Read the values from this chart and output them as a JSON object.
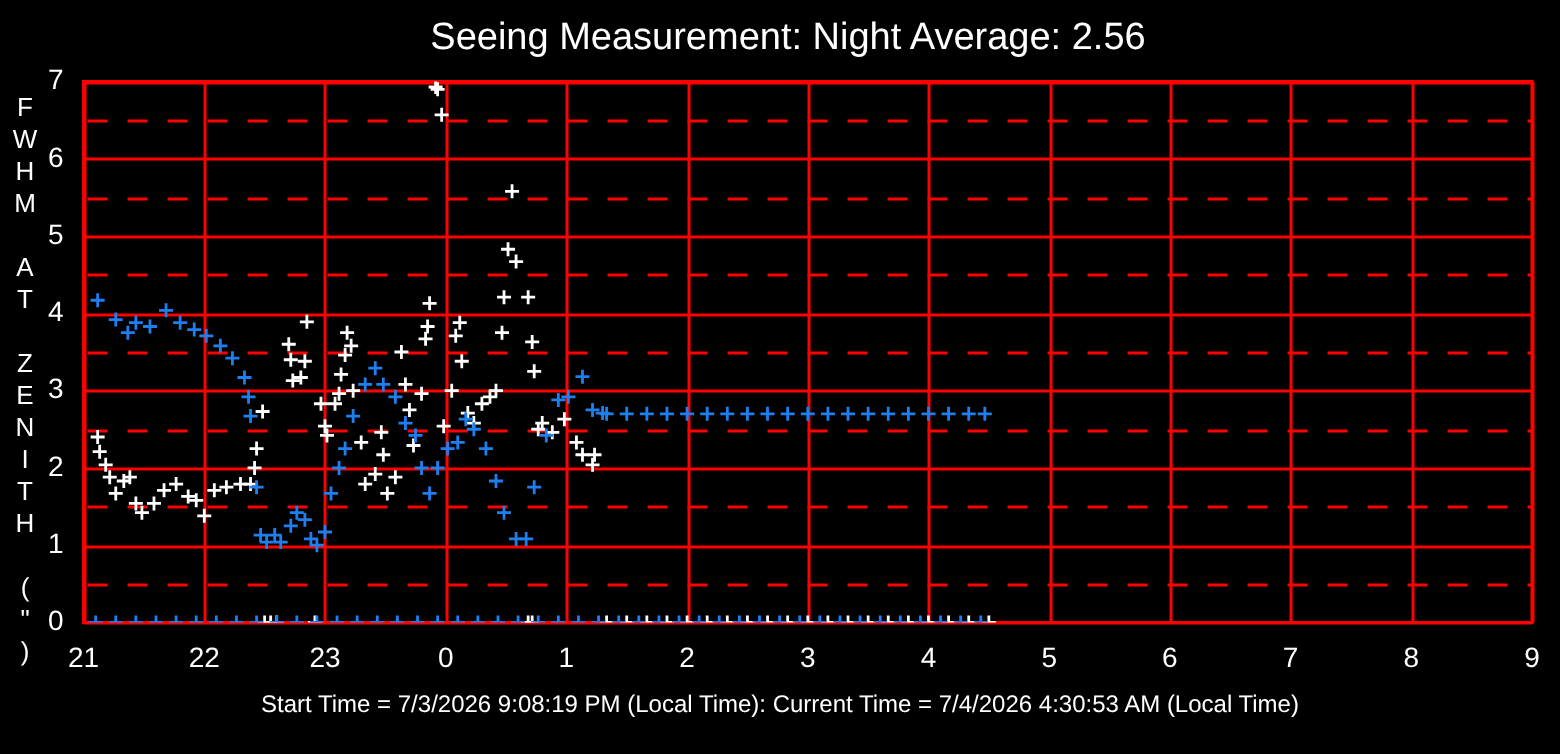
{
  "chart_data": {
    "type": "scatter",
    "title": "Seeing Measurement: Night Average: 2.56",
    "ylabel": "FWHM AT ZENITH (\")",
    "annotations": [
      "Start Time = 7/3/2026 9:08:19 PM (Local Time): Current Time = 7/4/2026 4:30:53 AM (Local Time)"
    ],
    "xlim": [
      "2026-07-03T21:00",
      "2026-07-04T09:00"
    ],
    "xticks": [
      {
        "value": "2026-07-03T21:00",
        "label": "21"
      },
      {
        "value": "2026-07-03T22:00",
        "label": "22"
      },
      {
        "value": "2026-07-03T23:00",
        "label": "23"
      },
      {
        "value": "2026-07-04T00:00",
        "label": "0"
      },
      {
        "value": "2026-07-04T01:00",
        "label": "1"
      },
      {
        "value": "2026-07-04T02:00",
        "label": "2"
      },
      {
        "value": "2026-07-04T03:00",
        "label": "3"
      },
      {
        "value": "2026-07-04T04:00",
        "label": "4"
      },
      {
        "value": "2026-07-04T05:00",
        "label": "5"
      },
      {
        "value": "2026-07-04T06:00",
        "label": "6"
      },
      {
        "value": "2026-07-04T07:00",
        "label": "7"
      },
      {
        "value": "2026-07-04T08:00",
        "label": "8"
      },
      {
        "value": "2026-07-04T09:00",
        "label": "9"
      }
    ],
    "ylim": [
      0,
      7
    ],
    "yticks": [
      0,
      {
        "value": 0.5,
        "label": null
      },
      1,
      {
        "value": 1.5,
        "label": null
      },
      2,
      {
        "value": 2.5,
        "label": null
      },
      3,
      {
        "value": 3.5,
        "label": null
      },
      4,
      {
        "value": 4.5,
        "label": null
      },
      5,
      {
        "value": 5.5,
        "label": null
      },
      6,
      {
        "value": 6.5,
        "label": null
      },
      7
    ],
    "grid": true,
    "marker": "cross",
    "series": [
      {
        "color": "#1e80f0",
        "x": [
          "2026-07-03T21:07",
          "2026-07-03T21:16",
          "2026-07-03T21:22",
          "2026-07-03T21:26",
          "2026-07-03T21:33",
          "2026-07-03T21:41",
          "2026-07-03T21:48",
          "2026-07-03T21:55",
          "2026-07-03T22:01",
          "2026-07-03T22:08",
          "2026-07-03T22:14",
          "2026-07-03T22:20",
          "2026-07-03T22:22",
          "2026-07-03T22:23",
          "2026-07-03T22:26",
          "2026-07-03T22:28",
          "2026-07-03T22:31",
          "2026-07-03T22:35",
          "2026-07-03T22:38",
          "2026-07-03T22:43",
          "2026-07-03T22:46",
          "2026-07-03T22:50",
          "2026-07-03T22:53",
          "2026-07-03T22:56",
          "2026-07-03T23:00",
          "2026-07-03T23:03",
          "2026-07-03T23:07",
          "2026-07-03T23:10",
          "2026-07-03T23:14",
          "2026-07-03T23:20",
          "2026-07-03T23:25",
          "2026-07-03T23:29",
          "2026-07-03T23:35",
          "2026-07-03T23:40",
          "2026-07-03T23:45",
          "2026-07-03T23:48",
          "2026-07-03T23:52",
          "2026-07-03T23:56",
          "2026-07-04T00:01",
          "2026-07-04T00:06",
          "2026-07-04T00:10",
          "2026-07-04T00:14",
          "2026-07-04T00:20",
          "2026-07-04T00:25",
          "2026-07-04T00:29",
          "2026-07-04T00:35",
          "2026-07-04T00:40",
          "2026-07-04T00:44",
          "2026-07-04T00:50",
          "2026-07-04T00:56",
          "2026-07-04T01:01",
          "2026-07-04T01:08",
          "2026-07-04T01:13",
          "2026-07-04T01:18",
          "2026-07-04T01:20",
          "2026-07-04T01:30",
          "2026-07-04T01:40",
          "2026-07-04T01:50",
          "2026-07-04T02:00",
          "2026-07-04T02:10",
          "2026-07-04T02:20",
          "2026-07-04T02:30",
          "2026-07-04T02:40",
          "2026-07-04T02:50",
          "2026-07-04T03:00",
          "2026-07-04T03:10",
          "2026-07-04T03:20",
          "2026-07-04T03:30",
          "2026-07-04T03:40",
          "2026-07-04T03:50",
          "2026-07-04T04:00",
          "2026-07-04T04:10",
          "2026-07-04T04:20",
          "2026-07-04T04:28",
          "2026-07-03T21:06",
          "2026-07-03T21:16",
          "2026-07-03T21:26",
          "2026-07-03T21:36",
          "2026-07-03T21:46",
          "2026-07-03T21:56",
          "2026-07-03T22:06",
          "2026-07-03T22:16",
          "2026-07-03T22:26",
          "2026-07-03T22:36",
          "2026-07-03T22:46",
          "2026-07-03T22:56",
          "2026-07-03T23:06",
          "2026-07-03T23:16",
          "2026-07-03T23:26",
          "2026-07-03T23:36",
          "2026-07-03T23:46",
          "2026-07-03T23:56",
          "2026-07-04T00:06",
          "2026-07-04T00:16",
          "2026-07-04T00:26",
          "2026-07-04T00:36",
          "2026-07-04T00:46",
          "2026-07-04T00:56",
          "2026-07-04T01:06",
          "2026-07-04T01:16",
          "2026-07-04T01:26",
          "2026-07-04T01:36",
          "2026-07-04T01:46",
          "2026-07-04T01:56",
          "2026-07-04T02:06",
          "2026-07-04T02:16",
          "2026-07-04T02:26",
          "2026-07-04T02:36",
          "2026-07-04T02:46",
          "2026-07-04T02:56",
          "2026-07-04T03:06",
          "2026-07-04T03:16",
          "2026-07-04T03:26",
          "2026-07-04T03:36",
          "2026-07-04T03:46",
          "2026-07-04T03:56",
          "2026-07-04T04:06",
          "2026-07-04T04:16",
          "2026-07-04T04:26"
        ],
        "values": [
          4.17,
          3.92,
          3.75,
          3.88,
          3.83,
          4.04,
          3.88,
          3.79,
          3.71,
          3.58,
          3.42,
          3.17,
          2.92,
          2.67,
          1.75,
          1.13,
          1.04,
          1.13,
          1.04,
          1.25,
          1.42,
          1.33,
          1.08,
          1.0,
          1.17,
          1.67,
          2.0,
          2.25,
          2.67,
          3.08,
          3.29,
          3.08,
          2.92,
          2.58,
          2.42,
          2.0,
          1.67,
          2.0,
          2.25,
          2.33,
          2.63,
          2.5,
          2.25,
          1.83,
          1.42,
          1.08,
          1.08,
          1.75,
          2.42,
          2.88,
          2.92,
          3.18,
          2.75,
          2.71,
          2.7,
          2.7,
          2.7,
          2.7,
          2.7,
          2.7,
          2.7,
          2.7,
          2.7,
          2.7,
          2.7,
          2.7,
          2.7,
          2.7,
          2.7,
          2.7,
          2.7,
          2.7,
          2.7,
          2.7,
          0,
          0,
          0,
          0,
          0,
          0,
          0,
          0,
          0,
          0,
          0,
          0,
          0,
          0,
          0,
          0,
          0,
          0,
          0,
          0,
          0,
          0,
          0,
          0,
          0,
          0,
          0,
          0,
          0,
          0,
          0,
          0,
          0,
          0,
          0,
          0,
          0,
          0,
          0,
          0,
          0,
          0,
          0,
          0,
          0
        ]
      },
      {
        "color": "#ffffff",
        "x": [
          "2026-07-03T21:07",
          "2026-07-03T21:08",
          "2026-07-03T21:11",
          "2026-07-03T21:13",
          "2026-07-03T21:16",
          "2026-07-03T21:20",
          "2026-07-03T21:23",
          "2026-07-03T21:26",
          "2026-07-03T21:29",
          "2026-07-03T21:35",
          "2026-07-03T21:40",
          "2026-07-03T21:46",
          "2026-07-03T21:52",
          "2026-07-03T21:56",
          "2026-07-03T22:00",
          "2026-07-03T22:05",
          "2026-07-03T22:11",
          "2026-07-03T22:18",
          "2026-07-03T22:23",
          "2026-07-03T22:25",
          "2026-07-03T22:26",
          "2026-07-03T22:29",
          "2026-07-03T22:42",
          "2026-07-03T22:43",
          "2026-07-03T22:44",
          "2026-07-03T22:48",
          "2026-07-03T22:50",
          "2026-07-03T22:51",
          "2026-07-03T22:58",
          "2026-07-03T23:00",
          "2026-07-03T23:01",
          "2026-07-03T23:05",
          "2026-07-03T23:07",
          "2026-07-03T23:08",
          "2026-07-03T23:10",
          "2026-07-03T23:11",
          "2026-07-03T23:13",
          "2026-07-03T23:14",
          "2026-07-03T23:18",
          "2026-07-03T23:20",
          "2026-07-03T23:25",
          "2026-07-03T23:28",
          "2026-07-03T23:29",
          "2026-07-03T23:31",
          "2026-07-03T23:35",
          "2026-07-03T23:38",
          "2026-07-03T23:40",
          "2026-07-03T23:42",
          "2026-07-03T23:44",
          "2026-07-03T23:48",
          "2026-07-03T23:50",
          "2026-07-03T23:51",
          "2026-07-03T23:52",
          "2026-07-03T23:55",
          "2026-07-03T23:56",
          "2026-07-03T23:58",
          "2026-07-03T23:59",
          "2026-07-04T00:03",
          "2026-07-04T00:05",
          "2026-07-04T00:07",
          "2026-07-04T00:08",
          "2026-07-04T00:11",
          "2026-07-04T00:14",
          "2026-07-04T00:18",
          "2026-07-04T00:22",
          "2026-07-04T00:25",
          "2026-07-04T00:28",
          "2026-07-04T00:29",
          "2026-07-04T00:31",
          "2026-07-04T00:33",
          "2026-07-04T00:35",
          "2026-07-04T00:41",
          "2026-07-04T00:43",
          "2026-07-04T00:44",
          "2026-07-04T00:46",
          "2026-07-04T00:48",
          "2026-07-04T00:53",
          "2026-07-04T00:59",
          "2026-07-04T01:05",
          "2026-07-04T01:08",
          "2026-07-04T01:13",
          "2026-07-04T01:14",
          "2026-07-03T22:30",
          "2026-07-03T22:33",
          "2026-07-03T22:36",
          "2026-07-03T22:55",
          "2026-07-04T00:41",
          "2026-07-04T00:43",
          "2026-07-04T01:20",
          "2026-07-04T01:30",
          "2026-07-04T01:40",
          "2026-07-04T01:50",
          "2026-07-04T02:00",
          "2026-07-04T02:10",
          "2026-07-04T02:20",
          "2026-07-04T02:30",
          "2026-07-04T02:40",
          "2026-07-04T02:50",
          "2026-07-04T03:00",
          "2026-07-04T03:10",
          "2026-07-04T03:20",
          "2026-07-04T03:30",
          "2026-07-04T03:40",
          "2026-07-04T03:50",
          "2026-07-04T04:00",
          "2026-07-04T04:10",
          "2026-07-04T04:20",
          "2026-07-04T04:30"
        ],
        "values": [
          2.4,
          2.21,
          2.04,
          1.88,
          1.67,
          1.83,
          1.88,
          1.54,
          1.42,
          1.54,
          1.71,
          1.79,
          1.63,
          1.58,
          1.38,
          1.71,
          1.75,
          1.79,
          1.79,
          2.0,
          2.25,
          2.73,
          3.6,
          3.4,
          3.13,
          3.17,
          3.38,
          3.89,
          2.83,
          2.54,
          2.42,
          2.83,
          2.96,
          3.21,
          3.46,
          3.75,
          3.58,
          3.0,
          2.33,
          1.79,
          1.92,
          2.46,
          2.17,
          1.67,
          1.88,
          3.5,
          3.08,
          2.75,
          2.29,
          2.96,
          3.67,
          3.83,
          4.13,
          6.93,
          6.9,
          6.57,
          2.54,
          3.0,
          3.71,
          3.88,
          3.38,
          2.71,
          2.58,
          2.83,
          2.92,
          3.0,
          3.75,
          4.21,
          4.83,
          5.58,
          4.67,
          4.21,
          3.63,
          3.25,
          2.5,
          2.58,
          2.46,
          2.63,
          2.33,
          2.17,
          2.04,
          2.17,
          0,
          0,
          0,
          0,
          0,
          0,
          0,
          0,
          0,
          0,
          0,
          0,
          0,
          0,
          0,
          0,
          0,
          0,
          0,
          0,
          0,
          0,
          0,
          0,
          0,
          0
        ]
      }
    ]
  }
}
